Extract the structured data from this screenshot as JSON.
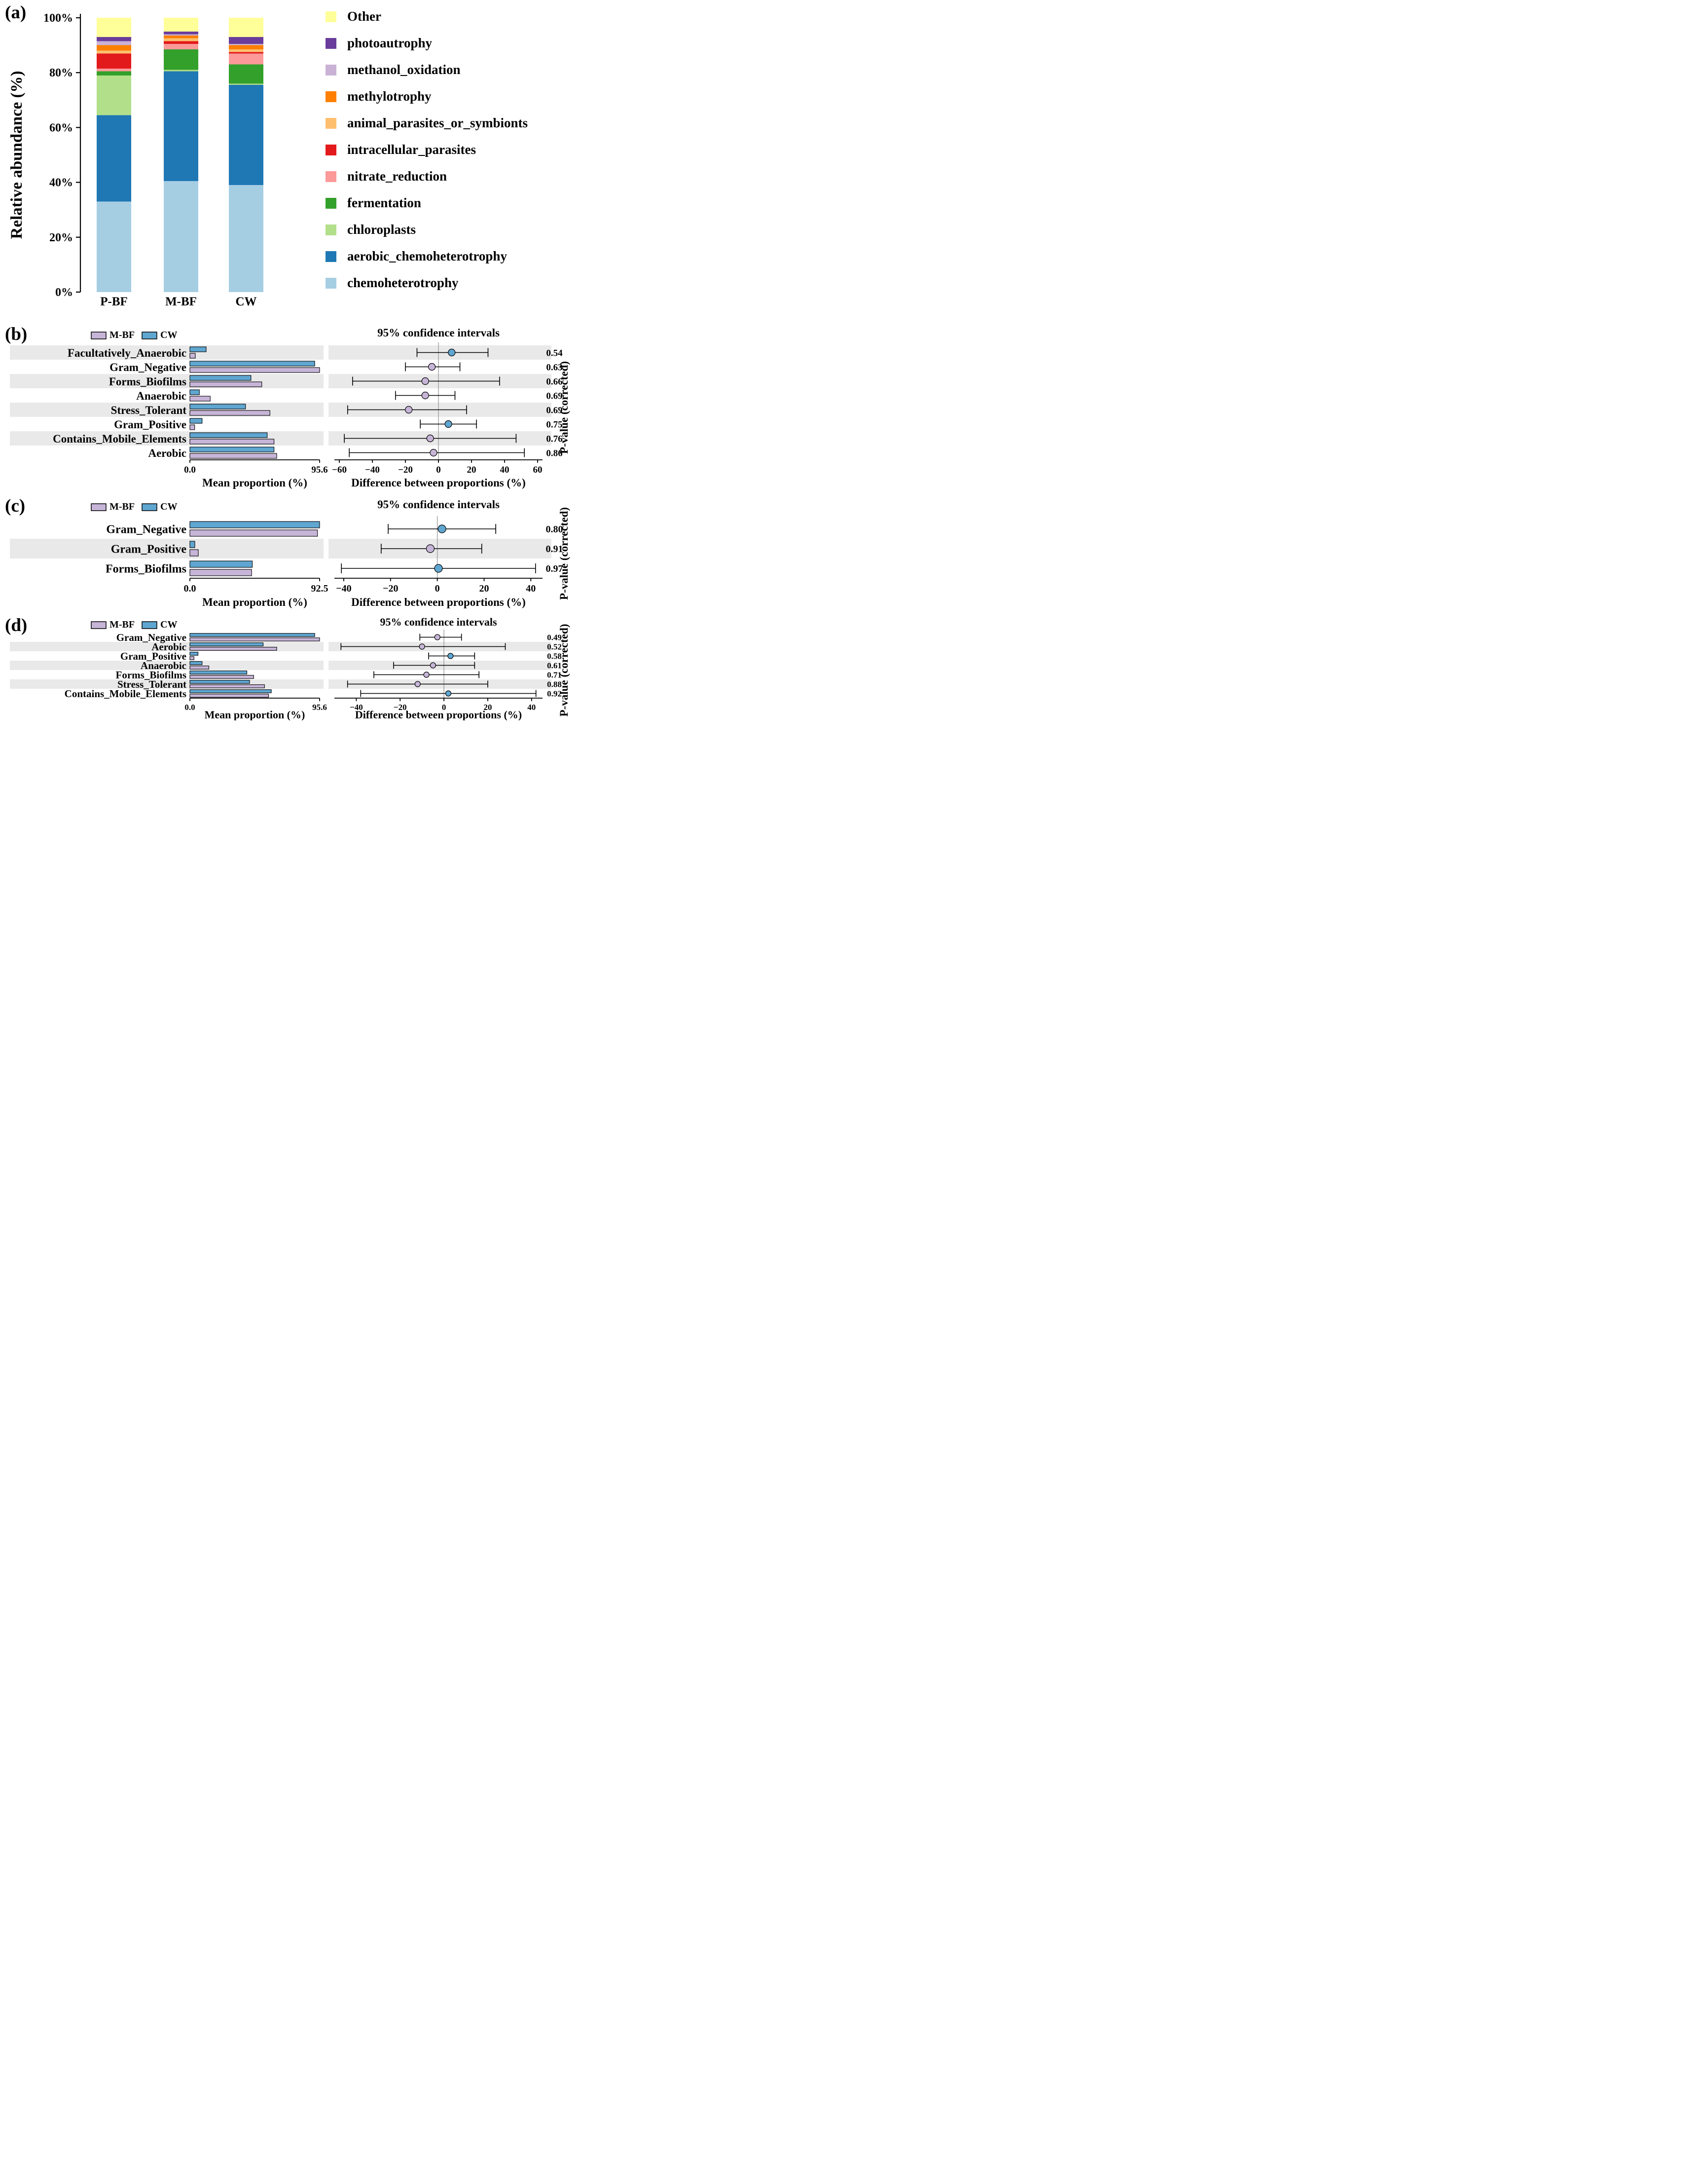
{
  "colors": {
    "band": "#E9E9E9",
    "axis": "#000000",
    "zero_line": "#9C9C9C",
    "mbf": "#C7B5D8",
    "cw": "#5FA6D1"
  },
  "chart_data": [
    {
      "id": "a",
      "type": "bar",
      "subtype": "stacked-percentage",
      "panel_label": "(a)",
      "ylabel": "Relative abundance (%)",
      "ylim": [
        0,
        100
      ],
      "yticks": [
        {
          "value": 0,
          "label": "0%"
        },
        {
          "value": 20,
          "label": "20%"
        },
        {
          "value": 40,
          "label": "40%"
        },
        {
          "value": 60,
          "label": "60%"
        },
        {
          "value": 80,
          "label": "80%"
        },
        {
          "value": 100,
          "label": "100%"
        }
      ],
      "categories": [
        "P-BF",
        "M-BF",
        "CW"
      ],
      "series_bottom_to_top": [
        {
          "name": "chemoheterotrophy",
          "color": "#A6CEE3",
          "values": [
            33.0,
            40.5,
            39.0
          ]
        },
        {
          "name": "aerobic_chemoheterotrophy",
          "color": "#1F78B4",
          "values": [
            31.5,
            40.0,
            36.5
          ]
        },
        {
          "name": "chloroplasts",
          "color": "#B2DF8A",
          "values": [
            14.5,
            0.5,
            0.5
          ]
        },
        {
          "name": "fermentation",
          "color": "#33A02C",
          "values": [
            1.5,
            7.5,
            7.0
          ]
        },
        {
          "name": "nitrate_reduction",
          "color": "#FB9A99",
          "values": [
            1.0,
            2.0,
            4.0
          ]
        },
        {
          "name": "intracellular_parasites",
          "color": "#E31A1C",
          "values": [
            5.5,
            1.0,
            0.5
          ]
        },
        {
          "name": "animal_parasites_or_symbionts",
          "color": "#FDBF6F",
          "values": [
            1.0,
            1.0,
            1.0
          ]
        },
        {
          "name": "methylotrophy",
          "color": "#FF7F00",
          "values": [
            2.0,
            1.0,
            1.5
          ]
        },
        {
          "name": "methanol_oxidation",
          "color": "#CAB2D6",
          "values": [
            1.5,
            0.5,
            0.5
          ]
        },
        {
          "name": "photoautrophy",
          "color": "#6A3D9A",
          "values": [
            1.5,
            1.0,
            2.5
          ]
        },
        {
          "name": "Other",
          "color": "#FFFF99",
          "values": [
            7.0,
            5.0,
            7.0
          ]
        }
      ],
      "legend_note": "legend drawn top-to-bottom as reverse of stacking order"
    },
    {
      "id": "b",
      "type": "bar",
      "subtype": "stamp-extended-error-bar",
      "panel_label": "(b)",
      "legend": [
        {
          "name": "M-BF",
          "color": "#C7B5D8"
        },
        {
          "name": "CW",
          "color": "#5FA6D1"
        }
      ],
      "ci_title": "95% confidence intervals",
      "bar_xlabel": "Mean proportion (%)",
      "diff_xlabel": "Difference between proportions (%)",
      "pvalue_axis_label": "P-value (corrected)",
      "bar_axis": {
        "max": 95.6,
        "tick_labels": [
          "0.0",
          "95.6"
        ]
      },
      "diff_axis": {
        "ticks": [
          {
            "value": -60,
            "label": "−60"
          },
          {
            "value": -40,
            "label": "−40"
          },
          {
            "value": -20,
            "label": "−20"
          },
          {
            "value": 0,
            "label": "0"
          },
          {
            "value": 20,
            "label": "20"
          },
          {
            "value": 40,
            "label": "40"
          },
          {
            "value": 60,
            "label": "60"
          }
        ]
      },
      "rows": [
        {
          "category": "Facultatively_Anaerobic",
          "mean_mbf": 4.0,
          "mean_cw": 12.0,
          "diff": 8,
          "ci": [
            -13,
            30
          ],
          "higher": "CW",
          "p_value": "0.54",
          "shaded": true
        },
        {
          "category": "Gram_Negative",
          "mean_mbf": 95.6,
          "mean_cw": 92.0,
          "diff": -4,
          "ci": [
            -20,
            13
          ],
          "higher": "M-BF",
          "p_value": "0.63",
          "shaded": false
        },
        {
          "category": "Forms_Biofilms",
          "mean_mbf": 53.0,
          "mean_cw": 45.0,
          "diff": -8,
          "ci": [
            -52,
            37
          ],
          "higher": "M-BF",
          "p_value": "0.66",
          "shaded": true
        },
        {
          "category": "Anaerobic",
          "mean_mbf": 15.0,
          "mean_cw": 7.0,
          "diff": -8,
          "ci": [
            -26,
            10
          ],
          "higher": "M-BF",
          "p_value": "0.69",
          "shaded": false
        },
        {
          "category": "Stress_Tolerant",
          "mean_mbf": 59.0,
          "mean_cw": 41.0,
          "diff": -18,
          "ci": [
            -55,
            17
          ],
          "higher": "M-BF",
          "p_value": "0.69",
          "shaded": true
        },
        {
          "category": "Gram_Positive",
          "mean_mbf": 3.5,
          "mean_cw": 9.0,
          "diff": 6,
          "ci": [
            -11,
            23
          ],
          "higher": "CW",
          "p_value": "0.75",
          "shaded": false
        },
        {
          "category": "Contains_Mobile_Elements",
          "mean_mbf": 62.0,
          "mean_cw": 57.0,
          "diff": -5,
          "ci": [
            -57,
            47
          ],
          "higher": "M-BF",
          "p_value": "0.76",
          "shaded": true
        },
        {
          "category": "Aerobic",
          "mean_mbf": 64.0,
          "mean_cw": 62.0,
          "diff": -3,
          "ci": [
            -54,
            52
          ],
          "higher": "M-BF",
          "p_value": "0.86",
          "shaded": false
        }
      ]
    },
    {
      "id": "c",
      "type": "bar",
      "subtype": "stamp-extended-error-bar",
      "panel_label": "(c)",
      "legend": [
        {
          "name": "M-BF",
          "color": "#C7B5D8"
        },
        {
          "name": "CW",
          "color": "#5FA6D1"
        }
      ],
      "ci_title": "95% confidence intervals",
      "bar_xlabel": "Mean proportion (%)",
      "diff_xlabel": "Difference between proportions (%)",
      "pvalue_axis_label": "P-value (corrected)",
      "bar_axis": {
        "max": 92.5,
        "tick_labels": [
          "0.0",
          "92.5"
        ]
      },
      "diff_axis": {
        "ticks": [
          {
            "value": -40,
            "label": "−40"
          },
          {
            "value": -20,
            "label": "−20"
          },
          {
            "value": 0,
            "label": "0"
          },
          {
            "value": 20,
            "label": "20"
          },
          {
            "value": 40,
            "label": "40"
          }
        ]
      },
      "rows": [
        {
          "category": "Gram_Negative",
          "mean_mbf": 91.0,
          "mean_cw": 92.5,
          "diff": 2,
          "ci": [
            -21,
            25
          ],
          "higher": "CW",
          "p_value": "0.80",
          "shaded": false
        },
        {
          "category": "Gram_Positive",
          "mean_mbf": 6.0,
          "mean_cw": 3.5,
          "diff": -3,
          "ci": [
            -24,
            19
          ],
          "higher": "M-BF",
          "p_value": "0.91",
          "shaded": true
        },
        {
          "category": "Forms_Biofilms",
          "mean_mbf": 44.0,
          "mean_cw": 44.5,
          "diff": 0.5,
          "ci": [
            -41,
            42
          ],
          "higher": "CW",
          "p_value": "0.97",
          "shaded": false
        }
      ]
    },
    {
      "id": "d",
      "type": "bar",
      "subtype": "stamp-extended-error-bar",
      "panel_label": "(d)",
      "legend": [
        {
          "name": "M-BF",
          "color": "#C7B5D8"
        },
        {
          "name": "CW",
          "color": "#5FA6D1"
        }
      ],
      "ci_title": "95% confidence intervals",
      "bar_xlabel": "Mean proportion (%)",
      "diff_xlabel": "Difference between proportions (%)",
      "pvalue_axis_label": "P-value (corrected)",
      "bar_axis": {
        "max": 95.6,
        "tick_labels": [
          "0.0",
          "95.6"
        ]
      },
      "diff_axis": {
        "ticks": [
          {
            "value": -40,
            "label": "−40"
          },
          {
            "value": -20,
            "label": "−20"
          },
          {
            "value": 0,
            "label": "0"
          },
          {
            "value": 20,
            "label": "20"
          },
          {
            "value": 40,
            "label": "40"
          }
        ]
      },
      "rows": [
        {
          "category": "Gram_Negative",
          "mean_mbf": 95.6,
          "mean_cw": 92.0,
          "diff": -3,
          "ci": [
            -11,
            8
          ],
          "higher": "M-BF",
          "p_value": "0.49",
          "shaded": false
        },
        {
          "category": "Aerobic",
          "mean_mbf": 64.0,
          "mean_cw": 54.0,
          "diff": -10,
          "ci": [
            -47,
            28
          ],
          "higher": "M-BF",
          "p_value": "0.52",
          "shaded": true
        },
        {
          "category": "Gram_Positive",
          "mean_mbf": 3.0,
          "mean_cw": 6.0,
          "diff": 3,
          "ci": [
            -7,
            14
          ],
          "higher": "CW",
          "p_value": "0.58",
          "shaded": false
        },
        {
          "category": "Anaerobic",
          "mean_mbf": 14.0,
          "mean_cw": 9.0,
          "diff": -5,
          "ci": [
            -23,
            14
          ],
          "higher": "M-BF",
          "p_value": "0.61",
          "shaded": true
        },
        {
          "category": "Forms_Biofilms",
          "mean_mbf": 47.0,
          "mean_cw": 42.0,
          "diff": -8,
          "ci": [
            -32,
            16
          ],
          "higher": "M-BF",
          "p_value": "0.71",
          "shaded": false
        },
        {
          "category": "Stress_Tolerant",
          "mean_mbf": 55.0,
          "mean_cw": 44.0,
          "diff": -12,
          "ci": [
            -44,
            20
          ],
          "higher": "M-BF",
          "p_value": "0.88",
          "shaded": true
        },
        {
          "category": "Contains_Mobile_Elements",
          "mean_mbf": 58.0,
          "mean_cw": 60.0,
          "diff": 2,
          "ci": [
            -38,
            42
          ],
          "higher": "CW",
          "p_value": "0.92",
          "shaded": false
        }
      ]
    }
  ]
}
